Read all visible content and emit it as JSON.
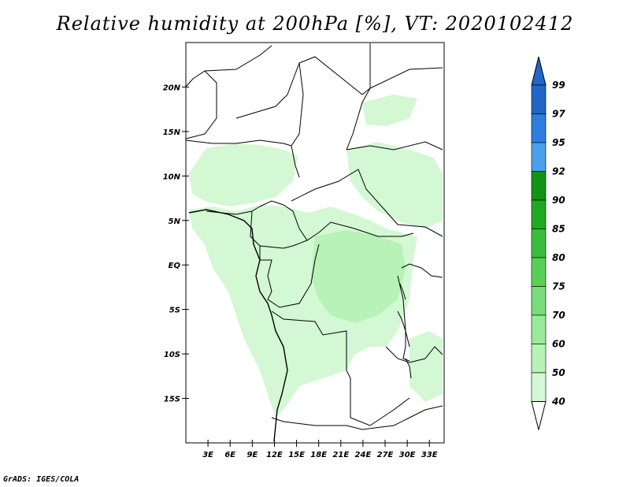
{
  "title": "Relative humidity at 200hPa [%], VT: 2020102412",
  "credit": "GrADS: IGES/COLA",
  "map": {
    "lat_labels": [
      "20N",
      "15N",
      "10N",
      "5N",
      "EQ",
      "5S",
      "10S",
      "15S"
    ],
    "lon_labels": [
      "3E",
      "6E",
      "9E",
      "12E",
      "15E",
      "18E",
      "21E",
      "24E",
      "27E",
      "30E",
      "33E"
    ],
    "lon_range": [
      0,
      35
    ],
    "lat_range": [
      -20,
      25
    ]
  },
  "colorbar": {
    "levels": [
      "99",
      "97",
      "95",
      "92",
      "90",
      "85",
      "80",
      "75",
      "70",
      "60",
      "50",
      "40"
    ],
    "colors": [
      "#2166c8",
      "#2f7de0",
      "#4aa0ea",
      "#139313",
      "#22a822",
      "#3cbc3c",
      "#58d058",
      "#78dd78",
      "#9aea9a",
      "#b7f2b7",
      "#d3f8d3",
      "#ecfdec"
    ],
    "top_arrow_color": "#2166c8",
    "bottom_arrow_color": "#ffffff"
  },
  "colors": {
    "light_green": "#d3f8d3",
    "mid_green": "#b7f2b7",
    "border": "#000000"
  }
}
